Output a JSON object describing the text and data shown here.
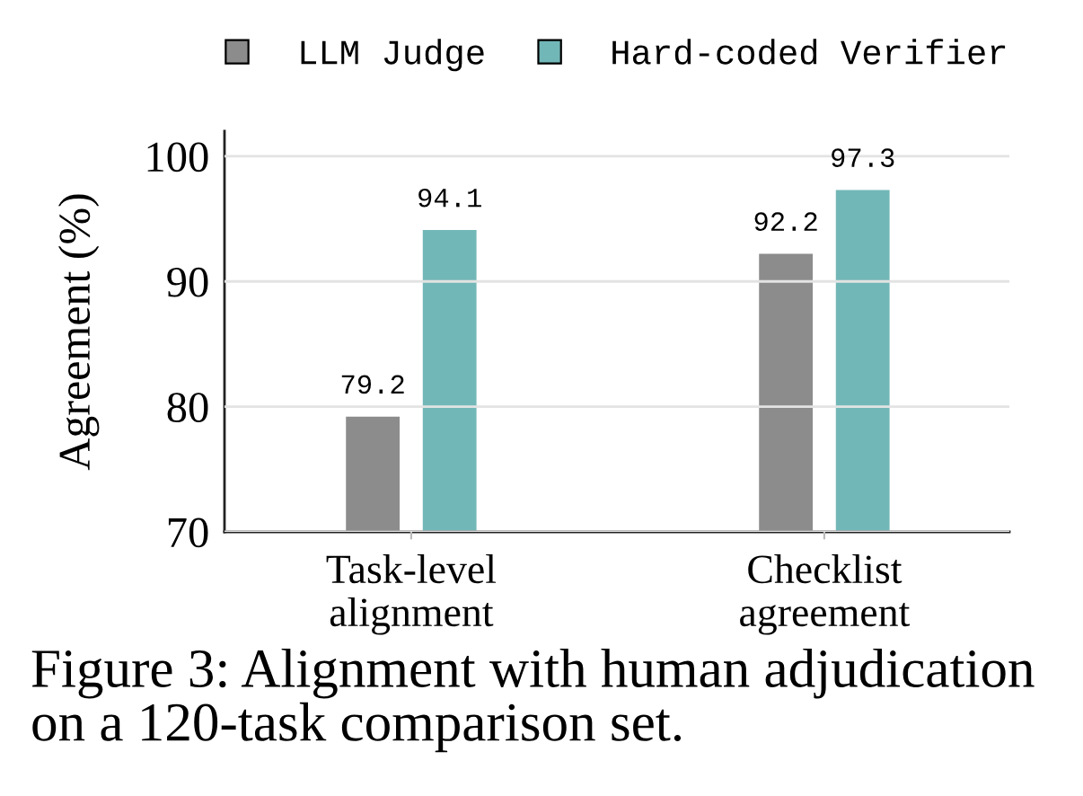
{
  "chart_data": {
    "type": "bar",
    "ylabel": "Agreement (%)",
    "categories": [
      "Task-level\nalignment",
      "Checklist\nagreement"
    ],
    "series": [
      {
        "name": "LLM Judge",
        "color": "#8c8c8c",
        "values": [
          79.2,
          92.2
        ]
      },
      {
        "name": "Hard-coded Verifier",
        "color": "#72b7b7",
        "values": [
          94.1,
          97.3
        ]
      }
    ],
    "ylim": [
      70,
      102
    ],
    "yticks": [
      70,
      80,
      90,
      100
    ],
    "grid": "y",
    "legend": "top",
    "data_labels": true,
    "annotations": [
      "Figure 3: Alignment with human adjudication on a 120-task comparison set."
    ]
  }
}
